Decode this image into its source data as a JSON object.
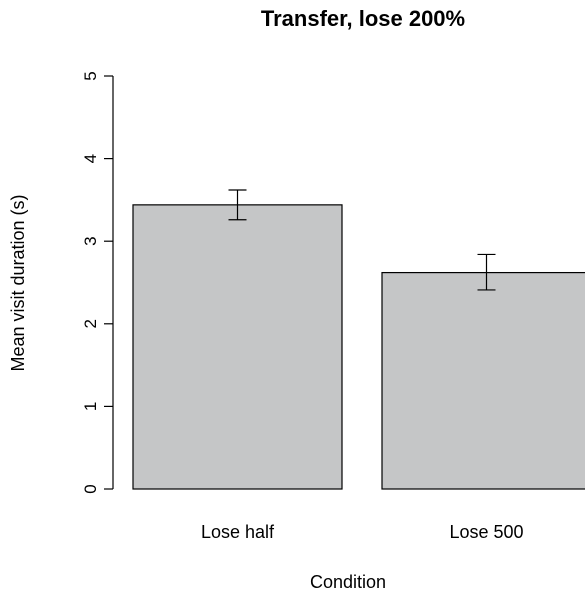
{
  "chart_data": {
    "type": "bar",
    "title": "Transfer, lose 200%",
    "xlabel": "Condition",
    "ylabel": "Mean visit duration (s)",
    "ylim": [
      0,
      5
    ],
    "yticks": [
      "0",
      "1",
      "2",
      "3",
      "4",
      "5"
    ],
    "categories": [
      "Lose half",
      "Lose 500"
    ],
    "values": [
      3.44,
      2.62
    ],
    "error_bars": [
      {
        "low": 3.26,
        "high": 3.62
      },
      {
        "low": 2.41,
        "high": 2.84
      }
    ],
    "bar_color": "#c5c6c7",
    "grid": false,
    "legend": "none"
  }
}
